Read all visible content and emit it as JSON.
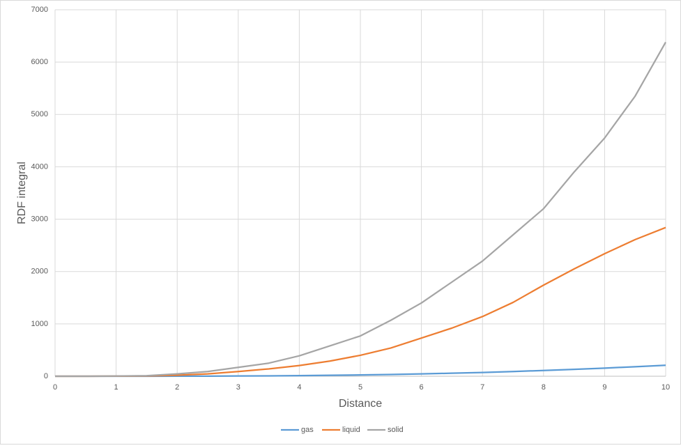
{
  "chart_data": {
    "type": "line",
    "x_label": "Distance",
    "y_label": "RDF integral",
    "x": [
      0,
      0.5,
      1,
      1.5,
      2,
      2.5,
      3,
      3.5,
      4,
      4.5,
      5,
      5.5,
      6,
      6.5,
      7,
      7.5,
      8,
      8.5,
      9,
      9.5,
      10
    ],
    "series": [
      {
        "name": "gas",
        "color": "#5b9bd5",
        "values": [
          0,
          0,
          0,
          0,
          1,
          2,
          5,
          7,
          12,
          18,
          25,
          34,
          45,
          58,
          72,
          90,
          110,
          132,
          155,
          182,
          210
        ]
      },
      {
        "name": "liquid",
        "color": "#ed7d31",
        "values": [
          0,
          0,
          1,
          5,
          20,
          45,
          90,
          140,
          205,
          290,
          400,
          540,
          730,
          920,
          1140,
          1410,
          1740,
          2050,
          2340,
          2610,
          2840
        ]
      },
      {
        "name": "solid",
        "color": "#a5a5a5",
        "values": [
          0,
          0,
          3,
          10,
          45,
          90,
          170,
          250,
          390,
          580,
          770,
          1070,
          1400,
          1800,
          2200,
          2700,
          3200,
          3900,
          4550,
          5350,
          6380
        ]
      }
    ],
    "xlim": [
      0,
      10
    ],
    "xticks": [
      0,
      1,
      2,
      3,
      4,
      5,
      6,
      7,
      8,
      9,
      10
    ],
    "ylim": [
      0,
      7000
    ],
    "yticks": [
      0,
      1000,
      2000,
      3000,
      4000,
      5000,
      6000,
      7000
    ],
    "grid": true,
    "legend": "bottom"
  }
}
